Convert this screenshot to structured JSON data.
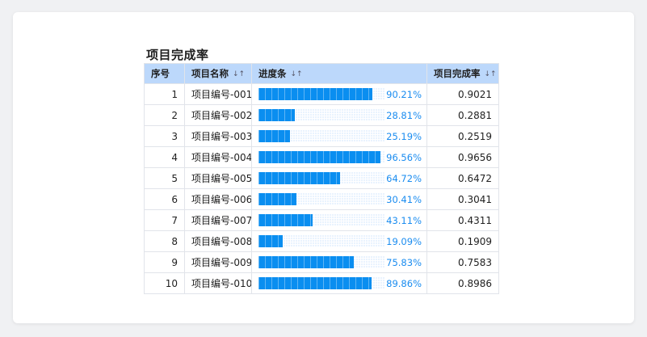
{
  "title": "项目完成率",
  "columns": {
    "index": "序号",
    "name": "项目名称",
    "progress": "进度条",
    "rate": "项目完成率"
  },
  "sort_icon": "↓↑",
  "colors": {
    "header_bg": "#bcd8fb",
    "bar_fill": "#0a8ef0",
    "bar_track": "#e9f3fe",
    "percent_text": "#1a8cf0"
  },
  "rows": [
    {
      "index": "1",
      "name": "项目编号-001",
      "progress": 0.9021,
      "percent": "90.21%",
      "rate": "0.9021"
    },
    {
      "index": "2",
      "name": "项目编号-002",
      "progress": 0.2881,
      "percent": "28.81%",
      "rate": "0.2881"
    },
    {
      "index": "3",
      "name": "项目编号-003",
      "progress": 0.2519,
      "percent": "25.19%",
      "rate": "0.2519"
    },
    {
      "index": "4",
      "name": "项目编号-004",
      "progress": 0.9656,
      "percent": "96.56%",
      "rate": "0.9656"
    },
    {
      "index": "5",
      "name": "项目编号-005",
      "progress": 0.6472,
      "percent": "64.72%",
      "rate": "0.6472"
    },
    {
      "index": "6",
      "name": "项目编号-006",
      "progress": 0.3041,
      "percent": "30.41%",
      "rate": "0.3041"
    },
    {
      "index": "7",
      "name": "项目编号-007",
      "progress": 0.4311,
      "percent": "43.11%",
      "rate": "0.4311"
    },
    {
      "index": "8",
      "name": "项目编号-008",
      "progress": 0.1909,
      "percent": "19.09%",
      "rate": "0.1909"
    },
    {
      "index": "9",
      "name": "项目编号-009",
      "progress": 0.7583,
      "percent": "75.83%",
      "rate": "0.7583"
    },
    {
      "index": "10",
      "name": "项目编号-010",
      "progress": 0.8986,
      "percent": "89.86%",
      "rate": "0.8986"
    }
  ]
}
